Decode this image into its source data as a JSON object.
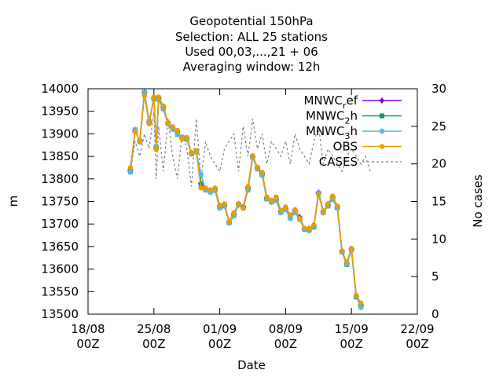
{
  "chart_data": {
    "type": "line",
    "title_lines": [
      "Geopotential 150hPa",
      "Selection: ALL      25 stations",
      "Used  00,03,...,21  + 06",
      "Averaging window: 12h"
    ],
    "xlabel": "Date",
    "ylabel": "m",
    "y2label": "No cases",
    "x_range": [
      "2023-08-18T00:00",
      "2023-09-22T00:00"
    ],
    "x_ticks": [
      {
        "date": "2023-08-18T00:00",
        "label1": "18/08",
        "label2": "00Z"
      },
      {
        "date": "2023-08-25T00:00",
        "label1": "25/08",
        "label2": "00Z"
      },
      {
        "date": "2023-09-01T00:00",
        "label1": "01/09",
        "label2": "00Z"
      },
      {
        "date": "2023-09-08T00:00",
        "label1": "08/09",
        "label2": "00Z"
      },
      {
        "date": "2023-09-15T00:00",
        "label1": "15/09",
        "label2": "00Z"
      },
      {
        "date": "2023-09-22T00:00",
        "label1": "22/09",
        "label2": "00Z"
      }
    ],
    "ylim": [
      13500,
      14000
    ],
    "y_ticks": [
      13500,
      13550,
      13600,
      13650,
      13700,
      13750,
      13800,
      13850,
      13900,
      13950,
      14000
    ],
    "y2lim": [
      0,
      30
    ],
    "y2_ticks": [
      0,
      5,
      10,
      15,
      20,
      25,
      30
    ],
    "grid": false,
    "legend_position": "top-right",
    "legend": [
      {
        "text": "MNWC",
        "sub": "r",
        "suffix": "ef",
        "series": "MNWC_ref"
      },
      {
        "text": "MNWC",
        "sub": "2",
        "suffix": "h",
        "series": "MNWC_2h"
      },
      {
        "text": "MNWC",
        "sub": "3",
        "suffix": "h",
        "series": "MNWC_3h"
      },
      {
        "text": "OBS",
        "sub": "",
        "suffix": "",
        "series": "OBS"
      },
      {
        "text": "CASES",
        "sub": "",
        "suffix": "",
        "series": "CASES"
      }
    ],
    "x": [
      "2023-08-22T12:00",
      "2023-08-23T00:00",
      "2023-08-23T12:00",
      "2023-08-24T00:00",
      "2023-08-24T12:00",
      "2023-08-25T00:00",
      "2023-08-25T06:00",
      "2023-08-25T12:00",
      "2023-08-26T00:00",
      "2023-08-26T12:00",
      "2023-08-27T00:00",
      "2023-08-27T12:00",
      "2023-08-28T00:00",
      "2023-08-28T12:00",
      "2023-08-29T00:00",
      "2023-08-29T12:00",
      "2023-08-30T00:00",
      "2023-08-30T12:00",
      "2023-08-31T00:00",
      "2023-08-31T12:00",
      "2023-09-01T00:00",
      "2023-09-01T12:00",
      "2023-09-02T00:00",
      "2023-09-02T12:00",
      "2023-09-03T00:00",
      "2023-09-03T12:00",
      "2023-09-04T00:00",
      "2023-09-04T12:00",
      "2023-09-05T00:00",
      "2023-09-05T12:00",
      "2023-09-06T00:00",
      "2023-09-06T12:00",
      "2023-09-07T00:00",
      "2023-09-07T12:00",
      "2023-09-08T00:00",
      "2023-09-08T12:00",
      "2023-09-09T00:00",
      "2023-09-09T12:00",
      "2023-09-10T00:00",
      "2023-09-10T12:00",
      "2023-09-11T00:00",
      "2023-09-11T12:00",
      "2023-09-12T00:00",
      "2023-09-12T12:00",
      "2023-09-13T00:00",
      "2023-09-13T12:00",
      "2023-09-14T00:00",
      "2023-09-14T12:00",
      "2023-09-15T00:00",
      "2023-09-15T12:00",
      "2023-09-16T00:00",
      "2023-09-16T12:00",
      "2023-09-17T00:00"
    ],
    "series": [
      {
        "name": "MNWC_ref",
        "color": "#9400d3",
        "marker": "plus-square",
        "axis": "y1",
        "values": [
          13820,
          13905,
          13885,
          13992,
          13925,
          13980,
          13868,
          13980,
          13960,
          13925,
          13915,
          13905,
          13890,
          13890,
          13858,
          13860,
          13790,
          13778,
          13775,
          13778,
          13740,
          13742,
          13705,
          13722,
          13745,
          13738,
          13780,
          13850,
          13825,
          13812,
          13758,
          13752,
          13755,
          13728,
          13735,
          13718,
          13730,
          13715,
          13690,
          13690,
          13695,
          13770,
          13728,
          13742,
          13760,
          13738,
          13640,
          13612,
          13645,
          13540,
          13520,
          null,
          null
        ]
      },
      {
        "name": "MNWC_2h",
        "color": "#009e73",
        "marker": "filled-square",
        "axis": "y1",
        "values": [
          13817,
          13907,
          13884,
          13990,
          13927,
          13978,
          13870,
          13978,
          13958,
          13923,
          13912,
          13902,
          13892,
          13888,
          13856,
          13862,
          13788,
          13776,
          13773,
          13776,
          13738,
          13740,
          13703,
          13720,
          13743,
          13736,
          13778,
          13848,
          13823,
          13810,
          13756,
          13750,
          13753,
          13726,
          13733,
          13716,
          13728,
          13713,
          13688,
          13688,
          13693,
          13768,
          13726,
          13740,
          13758,
          13736,
          13638,
          13610,
          13643,
          13538,
          13518,
          null,
          null
        ]
      },
      {
        "name": "MNWC_3h",
        "color": "#56b4e9",
        "marker": "star",
        "axis": "y1",
        "values": [
          13815,
          13910,
          13882,
          13993,
          13928,
          13977,
          13872,
          13976,
          13955,
          13922,
          13910,
          13898,
          13893,
          13887,
          13855,
          13860,
          13810,
          13775,
          13770,
          13774,
          13735,
          13740,
          13702,
          13718,
          13742,
          13735,
          13775,
          13848,
          13822,
          13808,
          13755,
          13748,
          13752,
          13725,
          13732,
          13712,
          13725,
          13710,
          13688,
          13685,
          13693,
          13768,
          13725,
          13740,
          13755,
          13735,
          13638,
          13610,
          13642,
          13540,
          13515,
          null,
          null
        ]
      },
      {
        "name": "OBS",
        "color": "#e69f00",
        "marker": "filled-circle",
        "axis": "y1",
        "values": [
          13825,
          13905,
          13885,
          13985,
          13922,
          13982,
          13865,
          13982,
          13962,
          13925,
          13915,
          13908,
          13888,
          13892,
          13858,
          13863,
          13780,
          13780,
          13776,
          13780,
          13742,
          13745,
          13705,
          13725,
          13745,
          13735,
          13783,
          13852,
          13826,
          13815,
          13760,
          13752,
          13760,
          13730,
          13738,
          13720,
          13732,
          13712,
          13691,
          13690,
          13698,
          13765,
          13728,
          13745,
          13762,
          13740,
          13640,
          13615,
          13646,
          13542,
          13525,
          null,
          null
        ]
      },
      {
        "name": "CASES",
        "color": "#808080",
        "dash": "dotted",
        "axis": "y2",
        "values": [
          19,
          23,
          21,
          24,
          22,
          27,
          18,
          25,
          19,
          26,
          21,
          18,
          24,
          22,
          17,
          26,
          18,
          23,
          21,
          20,
          19,
          22,
          23,
          24,
          19,
          25,
          21,
          26,
          22,
          24,
          20,
          23,
          22,
          21,
          23,
          20,
          24,
          22,
          21,
          20,
          23,
          25,
          20,
          22,
          21,
          20,
          19,
          21,
          22,
          21,
          20,
          21,
          19
        ]
      }
    ]
  }
}
